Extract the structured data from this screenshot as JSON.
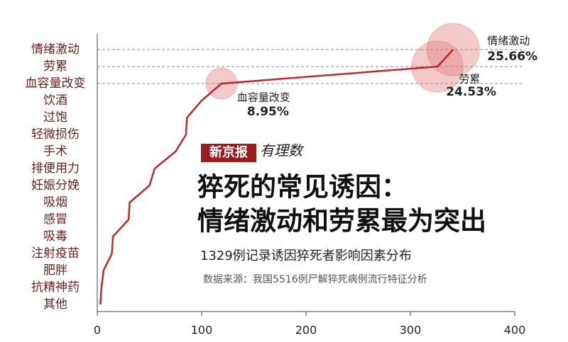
{
  "chart_data": {
    "type": "line",
    "title_line1": "猝死的常见诱因：",
    "title_line2": "情绪激动和劳累最为突出",
    "subtitle": "1329例记录诱因猝死者影响因素分布",
    "source": "数据来源：我国5516例尸解猝死病例流行特征分析",
    "brand": "新京报",
    "brand_column": "有理数",
    "categories": [
      "情绪激动",
      "劳累",
      "血容量改变",
      "饮酒",
      "过饱",
      "轻微损伤",
      "手术",
      "排便用力",
      "妊娠分娩",
      "吸烟",
      "感冒",
      "吸毒",
      "注射疫苗",
      "肥胖",
      "抗精神药",
      "其他"
    ],
    "series": [
      {
        "color": "#c0272d",
        "values": [
          341,
          326,
          119,
          100,
          86,
          85,
          75,
          55,
          50,
          31,
          30,
          15,
          14,
          6,
          4,
          3
        ]
      }
    ],
    "annotations": [
      {
        "label": "情绪激动",
        "text": "25.66%"
      },
      {
        "label": "劳累",
        "text": "24.53%"
      },
      {
        "label": "血容量改变",
        "text": "8.95%"
      }
    ],
    "bubble_color": "#e07b7b",
    "xlim": [
      0,
      400
    ],
    "xticks": [
      0,
      100,
      200,
      300,
      400
    ]
  }
}
